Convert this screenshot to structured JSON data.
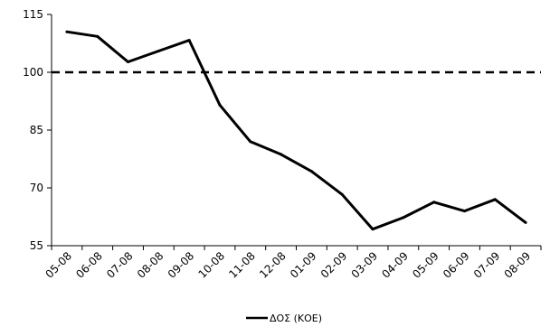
{
  "chart_data": {
    "type": "line",
    "categories": [
      "05-08",
      "06-08",
      "07-08",
      "08-08",
      "09-08",
      "10-08",
      "11-08",
      "12-08",
      "01-09",
      "02-09",
      "03-09",
      "04-09",
      "05-09",
      "06-09",
      "07-09",
      "08-09"
    ],
    "series": [
      {
        "name": "ΔΟΣ (ΚΟΕ)",
        "values": [
          110.5,
          109.3,
          102.7,
          105.5,
          108.3,
          91.5,
          82.0,
          78.7,
          74.3,
          68.3,
          59.3,
          62.3,
          66.3,
          64.0,
          67.0,
          61.0
        ],
        "color": "#000000"
      }
    ],
    "reference_line": {
      "value": 100,
      "style": "dashed",
      "color": "#000000"
    },
    "yticks": [
      "115",
      "100",
      "85",
      "70",
      "55"
    ],
    "ylim": [
      55,
      115
    ],
    "grid": false,
    "legend_position": "bottom-center"
  }
}
